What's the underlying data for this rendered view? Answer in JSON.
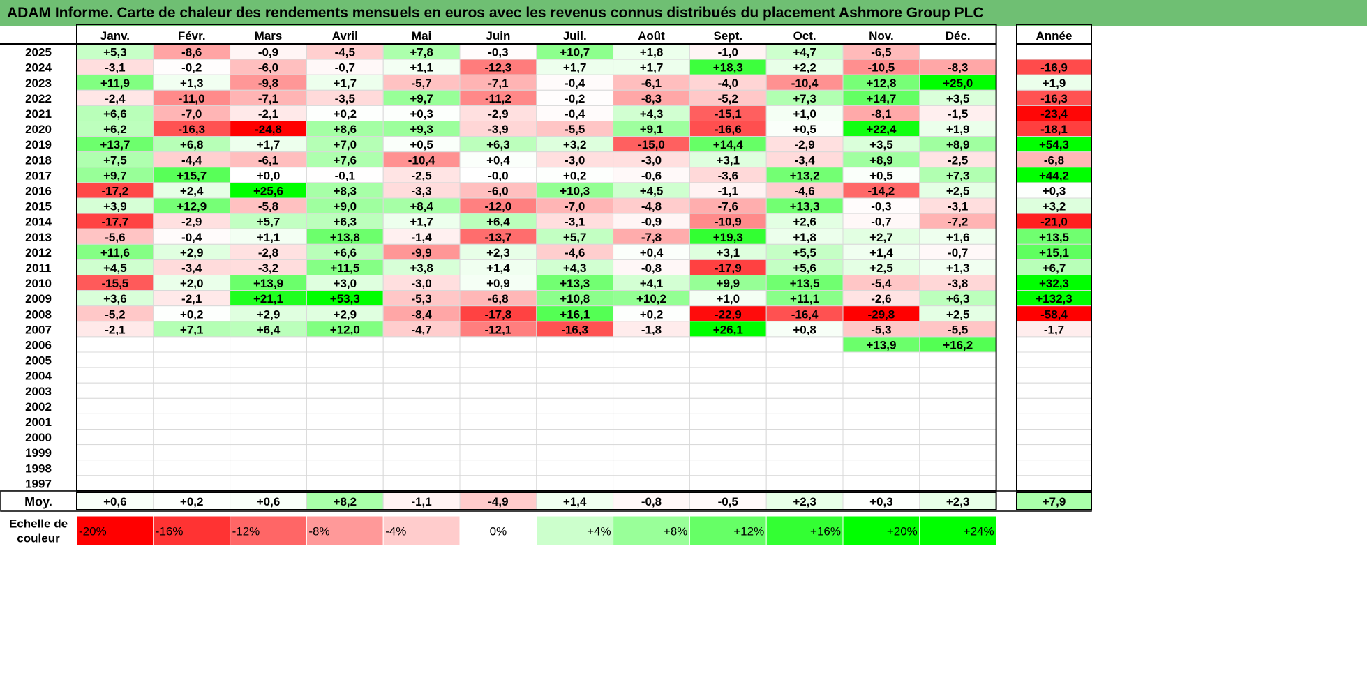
{
  "title": "ADAM Informe. Carte de chaleur des rendements mensuels en euros avec les revenus connus distribués du placement Ashmore Group PLC",
  "chart_data": {
    "type": "heatmap",
    "months": [
      "Janv.",
      "Févr.",
      "Mars",
      "Avril",
      "Mai",
      "Juin",
      "Juil.",
      "Août",
      "Sept.",
      "Oct.",
      "Nov.",
      "Déc."
    ],
    "year_header": "Année",
    "rows": [
      {
        "year": "2025",
        "values": [
          "+5,3",
          "-8,6",
          "-0,9",
          "-4,5",
          "+7,8",
          "-0,3",
          "+10,7",
          "+1,8",
          "-1,0",
          "+4,7",
          "-6,5",
          ""
        ],
        "annual": ""
      },
      {
        "year": "2024",
        "values": [
          "-3,1",
          "-0,2",
          "-6,0",
          "-0,7",
          "+1,1",
          "-12,3",
          "+1,7",
          "+1,7",
          "+18,3",
          "+2,2",
          "-10,5",
          "-8,3"
        ],
        "annual": "-16,9"
      },
      {
        "year": "2023",
        "values": [
          "+11,9",
          "+1,3",
          "-9,8",
          "+1,7",
          "-5,7",
          "-7,1",
          "-0,4",
          "-6,1",
          "-4,0",
          "-10,4",
          "+12,8",
          "+25,0"
        ],
        "annual": "+1,9"
      },
      {
        "year": "2022",
        "values": [
          "-2,4",
          "-11,0",
          "-7,1",
          "-3,5",
          "+9,7",
          "-11,2",
          "-0,2",
          "-8,3",
          "-5,2",
          "+7,3",
          "+14,7",
          "+3,5"
        ],
        "annual": "-16,3"
      },
      {
        "year": "2021",
        "values": [
          "+6,6",
          "-7,0",
          "-2,1",
          "+0,2",
          "+0,3",
          "-2,9",
          "-0,4",
          "+4,3",
          "-15,1",
          "+1,0",
          "-8,1",
          "-1,5"
        ],
        "annual": "-23,4"
      },
      {
        "year": "2020",
        "values": [
          "+6,2",
          "-16,3",
          "-24,8",
          "+8,6",
          "+9,3",
          "-3,9",
          "-5,5",
          "+9,1",
          "-16,6",
          "+0,5",
          "+22,4",
          "+1,9"
        ],
        "annual": "-18,1"
      },
      {
        "year": "2019",
        "values": [
          "+13,7",
          "+6,8",
          "+1,7",
          "+7,0",
          "+0,5",
          "+6,3",
          "+3,2",
          "-15,0",
          "+14,4",
          "-2,9",
          "+3,5",
          "+8,9"
        ],
        "annual": "+54,3"
      },
      {
        "year": "2018",
        "values": [
          "+7,5",
          "-4,4",
          "-6,1",
          "+7,6",
          "-10,4",
          "+0,4",
          "-3,0",
          "-3,0",
          "+3,1",
          "-3,4",
          "+8,9",
          "-2,5"
        ],
        "annual": "-6,8"
      },
      {
        "year": "2017",
        "values": [
          "+9,7",
          "+15,7",
          "+0,0",
          "-0,1",
          "-2,5",
          "-0,0",
          "+0,2",
          "-0,6",
          "-3,6",
          "+13,2",
          "+0,5",
          "+7,3"
        ],
        "annual": "+44,2"
      },
      {
        "year": "2016",
        "values": [
          "-17,2",
          "+2,4",
          "+25,6",
          "+8,3",
          "-3,3",
          "-6,0",
          "+10,3",
          "+4,5",
          "-1,1",
          "-4,6",
          "-14,2",
          "+2,5"
        ],
        "annual": "+0,3"
      },
      {
        "year": "2015",
        "values": [
          "+3,9",
          "+12,9",
          "-5,8",
          "+9,0",
          "+8,4",
          "-12,0",
          "-7,0",
          "-4,8",
          "-7,6",
          "+13,3",
          "-0,3",
          "-3,1"
        ],
        "annual": "+3,2"
      },
      {
        "year": "2014",
        "values": [
          "-17,7",
          "-2,9",
          "+5,7",
          "+6,3",
          "+1,7",
          "+6,4",
          "-3,1",
          "-0,9",
          "-10,9",
          "+2,6",
          "-0,7",
          "-7,2"
        ],
        "annual": "-21,0"
      },
      {
        "year": "2013",
        "values": [
          "-5,6",
          "-0,4",
          "+1,1",
          "+13,8",
          "-1,4",
          "-13,7",
          "+5,7",
          "-7,8",
          "+19,3",
          "+1,8",
          "+2,7",
          "+1,6"
        ],
        "annual": "+13,5"
      },
      {
        "year": "2012",
        "values": [
          "+11,6",
          "+2,9",
          "-2,8",
          "+6,6",
          "-9,9",
          "+2,3",
          "-4,6",
          "+0,4",
          "+3,1",
          "+5,5",
          "+1,4",
          "-0,7"
        ],
        "annual": "+15,1"
      },
      {
        "year": "2011",
        "values": [
          "+4,5",
          "-3,4",
          "-3,2",
          "+11,5",
          "+3,8",
          "+1,4",
          "+4,3",
          "-0,8",
          "-17,9",
          "+5,6",
          "+2,5",
          "+1,3"
        ],
        "annual": "+6,7"
      },
      {
        "year": "2010",
        "values": [
          "-15,5",
          "+2,0",
          "+13,9",
          "+3,0",
          "-3,0",
          "+0,9",
          "+13,3",
          "+4,1",
          "+9,9",
          "+13,5",
          "-5,4",
          "-3,8"
        ],
        "annual": "+32,3"
      },
      {
        "year": "2009",
        "values": [
          "+3,6",
          "-2,1",
          "+21,1",
          "+53,3",
          "-5,3",
          "-6,8",
          "+10,8",
          "+10,2",
          "+1,0",
          "+11,1",
          "-2,6",
          "+6,3"
        ],
        "annual": "+132,3"
      },
      {
        "year": "2008",
        "values": [
          "-5,2",
          "+0,2",
          "+2,9",
          "+2,9",
          "-8,4",
          "-17,8",
          "+16,1",
          "+0,2",
          "-22,9",
          "-16,4",
          "-29,8",
          "+2,5"
        ],
        "annual": "-58,4"
      },
      {
        "year": "2007",
        "values": [
          "-2,1",
          "+7,1",
          "+6,4",
          "+12,0",
          "-4,7",
          "-12,1",
          "-16,3",
          "-1,8",
          "+26,1",
          "+0,8",
          "-5,3",
          "-5,5"
        ],
        "annual": "-1,7"
      },
      {
        "year": "2006",
        "values": [
          "",
          "",
          "",
          "",
          "",
          "",
          "",
          "",
          "",
          "",
          "+13,9",
          "+16,2"
        ],
        "annual": ""
      },
      {
        "year": "2005",
        "values": [
          "",
          "",
          "",
          "",
          "",
          "",
          "",
          "",
          "",
          "",
          "",
          ""
        ],
        "annual": ""
      },
      {
        "year": "2004",
        "values": [
          "",
          "",
          "",
          "",
          "",
          "",
          "",
          "",
          "",
          "",
          "",
          ""
        ],
        "annual": ""
      },
      {
        "year": "2003",
        "values": [
          "",
          "",
          "",
          "",
          "",
          "",
          "",
          "",
          "",
          "",
          "",
          ""
        ],
        "annual": ""
      },
      {
        "year": "2002",
        "values": [
          "",
          "",
          "",
          "",
          "",
          "",
          "",
          "",
          "",
          "",
          "",
          ""
        ],
        "annual": ""
      },
      {
        "year": "2001",
        "values": [
          "",
          "",
          "",
          "",
          "",
          "",
          "",
          "",
          "",
          "",
          "",
          ""
        ],
        "annual": ""
      },
      {
        "year": "2000",
        "values": [
          "",
          "",
          "",
          "",
          "",
          "",
          "",
          "",
          "",
          "",
          "",
          ""
        ],
        "annual": ""
      },
      {
        "year": "1999",
        "values": [
          "",
          "",
          "",
          "",
          "",
          "",
          "",
          "",
          "",
          "",
          "",
          ""
        ],
        "annual": ""
      },
      {
        "year": "1998",
        "values": [
          "",
          "",
          "",
          "",
          "",
          "",
          "",
          "",
          "",
          "",
          "",
          ""
        ],
        "annual": ""
      },
      {
        "year": "1997",
        "values": [
          "",
          "",
          "",
          "",
          "",
          "",
          "",
          "",
          "",
          "",
          "",
          ""
        ],
        "annual": ""
      }
    ],
    "average": {
      "label": "Moy.",
      "values": [
        "+0,6",
        "+0,2",
        "+0,6",
        "+8,2",
        "-1,1",
        "-4,9",
        "+1,4",
        "-0,8",
        "-0,5",
        "+2,3",
        "+0,3",
        "+2,3"
      ],
      "annual": "+7,9"
    },
    "scale": {
      "label_lines": [
        "Echelle de",
        "couleur"
      ],
      "steps": [
        {
          "label": "-20%",
          "color": "#ff0000"
        },
        {
          "label": "-16%",
          "color": "#ff3333"
        },
        {
          "label": "-12%",
          "color": "#ff6666"
        },
        {
          "label": "-8%",
          "color": "#ff9999"
        },
        {
          "label": "-4%",
          "color": "#ffcccc"
        },
        {
          "label": "0%",
          "color": "#ffffff"
        },
        {
          "label": "+4%",
          "color": "#ccffcc"
        },
        {
          "label": "+8%",
          "color": "#99ff99"
        },
        {
          "label": "+12%",
          "color": "#66ff66"
        },
        {
          "label": "+16%",
          "color": "#33ff33"
        },
        {
          "label": "+20%",
          "color": "#00ff00"
        },
        {
          "label": "+24%",
          "color": "#00ff00"
        }
      ]
    },
    "color_scale": {
      "negative": "#ff0000",
      "neutral": "#ffffff",
      "positive": "#00ff00",
      "saturation_percent": 24
    }
  }
}
